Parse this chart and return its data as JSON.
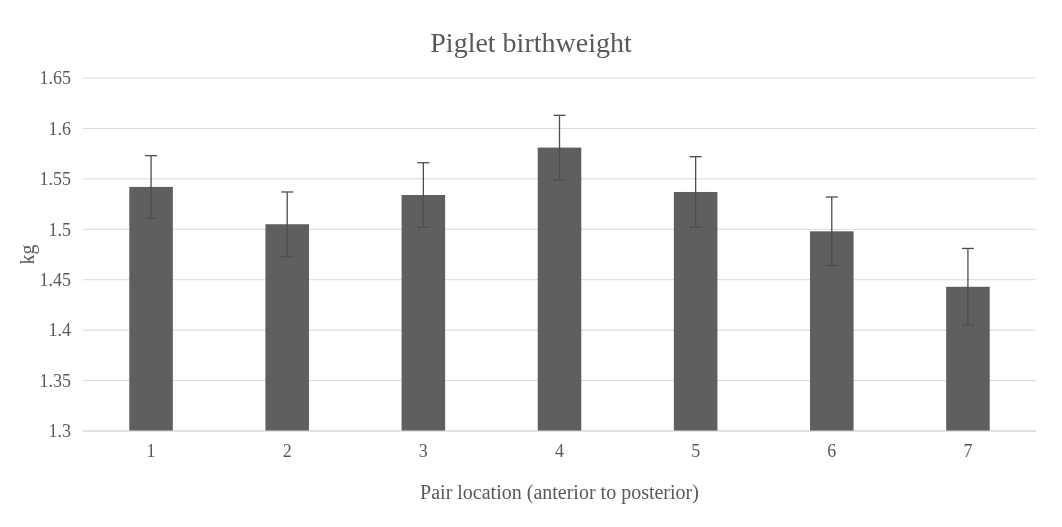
{
  "chart_data": {
    "type": "bar",
    "title": "Piglet birthweight",
    "xlabel": "Pair location (anterior to posterior)",
    "ylabel": "kg",
    "categories": [
      "1",
      "2",
      "3",
      "4",
      "5",
      "6",
      "7"
    ],
    "series": [
      {
        "color": "#5f5f5f",
        "values": [
          1.542,
          1.505,
          1.534,
          1.581,
          1.537,
          1.498,
          1.443
        ],
        "errors": [
          0.031,
          0.032,
          0.032,
          0.032,
          0.035,
          0.034,
          0.038
        ]
      }
    ],
    "ylim": [
      1.3,
      1.65
    ],
    "yticks": [
      1.3,
      1.35,
      1.4,
      1.45,
      1.5,
      1.55,
      1.6,
      1.65
    ],
    "grid": "y"
  }
}
